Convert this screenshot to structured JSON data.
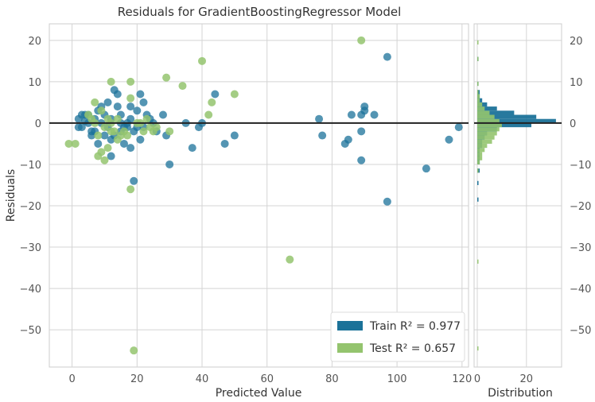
{
  "chart_data": {
    "type": "scatter",
    "title": "Residuals for GradientBoostingRegressor Model",
    "xlabel": "Predicted Value",
    "ylabel": "Residuals",
    "hist_xlabel": "Distribution",
    "xlim": [
      -7,
      122
    ],
    "ylim": [
      -59,
      24
    ],
    "xticks": [
      0,
      20,
      40,
      60,
      80,
      100,
      120
    ],
    "yticks": [
      20,
      10,
      0,
      -10,
      -20,
      -30,
      -40,
      -50
    ],
    "ytick_labels": [
      "20",
      "10",
      "0",
      "−10",
      "−20",
      "−30",
      "−40",
      "−50"
    ],
    "hist_xticks": [
      0,
      20
    ],
    "hist_xlim": [
      0,
      33
    ],
    "grid": true,
    "legend_position": "bottom-right",
    "colors": {
      "train": "#1b7299",
      "test": "#94c46e"
    },
    "series": [
      {
        "name": "Train",
        "legend": "Train R² = 0.977",
        "color": "#1b7299",
        "points": [
          [
            2,
            1
          ],
          [
            3,
            -1
          ],
          [
            4,
            0.5
          ],
          [
            5,
            2
          ],
          [
            6,
            -2
          ],
          [
            7,
            1
          ],
          [
            8,
            3
          ],
          [
            9,
            0
          ],
          [
            10,
            2
          ],
          [
            11,
            -1
          ],
          [
            12,
            1
          ],
          [
            13,
            -3
          ],
          [
            14,
            4
          ],
          [
            15,
            2
          ],
          [
            16,
            -1
          ],
          [
            17,
            0
          ],
          [
            18,
            1
          ],
          [
            19,
            -2
          ],
          [
            20,
            3
          ],
          [
            21,
            -4
          ],
          [
            22,
            -1
          ],
          [
            23,
            2
          ],
          [
            24,
            1
          ],
          [
            13,
            8
          ],
          [
            14,
            7
          ],
          [
            21,
            7
          ],
          [
            22,
            5
          ],
          [
            28,
            2
          ],
          [
            35,
            0
          ],
          [
            39,
            -1
          ],
          [
            40,
            0
          ],
          [
            44,
            7
          ],
          [
            47,
            -5
          ],
          [
            50,
            -3
          ],
          [
            29,
            -3
          ],
          [
            30,
            -10
          ],
          [
            37,
            -6
          ],
          [
            19,
            -14
          ],
          [
            12,
            -8
          ],
          [
            8,
            -5
          ],
          [
            10,
            -3
          ],
          [
            15,
            -2
          ],
          [
            16,
            -5
          ],
          [
            18,
            -6
          ],
          [
            6,
            -3
          ],
          [
            5,
            0
          ],
          [
            4,
            2
          ],
          [
            11,
            5
          ],
          [
            9,
            4
          ],
          [
            7,
            -2
          ],
          [
            3,
            2
          ],
          [
            2,
            -1
          ],
          [
            12,
            -4
          ],
          [
            15,
            0
          ],
          [
            17,
            -1
          ],
          [
            20,
            -1
          ],
          [
            25,
            0
          ],
          [
            26,
            -2
          ],
          [
            18,
            4
          ],
          [
            76,
            1
          ],
          [
            77,
            -3
          ],
          [
            86,
            2
          ],
          [
            85,
            -4
          ],
          [
            84,
            -5
          ],
          [
            89,
            -9
          ],
          [
            89,
            2
          ],
          [
            89,
            -2
          ],
          [
            93,
            2
          ],
          [
            90,
            4
          ],
          [
            90,
            3
          ],
          [
            97,
            16
          ],
          [
            97,
            -19
          ],
          [
            109,
            -11
          ],
          [
            116,
            -4
          ],
          [
            119,
            -1
          ]
        ]
      },
      {
        "name": "Test",
        "legend": "Test R² = 0.657",
        "color": "#94c46e",
        "points": [
          [
            -1,
            -5
          ],
          [
            1,
            -5
          ],
          [
            5,
            2
          ],
          [
            7,
            5
          ],
          [
            8,
            -3
          ],
          [
            8,
            -8
          ],
          [
            9,
            -7
          ],
          [
            10,
            -9
          ],
          [
            11,
            -6
          ],
          [
            12,
            0
          ],
          [
            12,
            10
          ],
          [
            18,
            10
          ],
          [
            18,
            6
          ],
          [
            20,
            0
          ],
          [
            22,
            -2
          ],
          [
            23,
            1
          ],
          [
            25,
            -2
          ],
          [
            26,
            -1
          ],
          [
            29,
            11
          ],
          [
            30,
            -2
          ],
          [
            34,
            9
          ],
          [
            40,
            15
          ],
          [
            42,
            2
          ],
          [
            43,
            5
          ],
          [
            50,
            7
          ],
          [
            67,
            -33
          ],
          [
            89,
            20
          ],
          [
            19,
            -55
          ],
          [
            18,
            -16
          ],
          [
            13,
            -2
          ],
          [
            14,
            -4
          ],
          [
            15,
            -3
          ],
          [
            6,
            1
          ],
          [
            9,
            3
          ],
          [
            10,
            -1
          ],
          [
            11,
            1
          ],
          [
            16,
            -2
          ],
          [
            17,
            -3
          ],
          [
            21,
            0
          ],
          [
            24,
            -1
          ],
          [
            14,
            1
          ],
          [
            12,
            -2
          ],
          [
            7,
            0
          ]
        ]
      }
    ],
    "hist_bins": [
      {
        "y": -18.5,
        "train": 0.5,
        "test": 0
      },
      {
        "y": -14.5,
        "train": 0.5,
        "test": 0
      },
      {
        "y": -11.5,
        "train": 1,
        "test": 0.5
      },
      {
        "y": -9.5,
        "train": 1,
        "test": 1
      },
      {
        "y": -8.5,
        "train": 1,
        "test": 2
      },
      {
        "y": -7.5,
        "train": 1,
        "test": 2
      },
      {
        "y": -6.5,
        "train": 1,
        "test": 3
      },
      {
        "y": -5.5,
        "train": 2,
        "test": 4
      },
      {
        "y": -4.5,
        "train": 2,
        "test": 6
      },
      {
        "y": -3.5,
        "train": 3,
        "test": 7
      },
      {
        "y": -2.5,
        "train": 4,
        "test": 8
      },
      {
        "y": -1.5,
        "train": 8,
        "test": 9
      },
      {
        "y": -0.5,
        "train": 22,
        "test": 10
      },
      {
        "y": 0.5,
        "train": 32,
        "test": 9
      },
      {
        "y": 1.5,
        "train": 24,
        "test": 7
      },
      {
        "y": 2.5,
        "train": 15,
        "test": 5
      },
      {
        "y": 3.5,
        "train": 8,
        "test": 3
      },
      {
        "y": 4.5,
        "train": 4,
        "test": 2
      },
      {
        "y": 5.5,
        "train": 2,
        "test": 1
      },
      {
        "y": 6.5,
        "train": 1,
        "test": 1
      },
      {
        "y": 7.5,
        "train": 1,
        "test": 0.5
      },
      {
        "y": 9.5,
        "train": 0.5,
        "test": 0.5
      },
      {
        "y": 15.5,
        "train": 0.5,
        "test": 0.5
      },
      {
        "y": 19.5,
        "train": 0,
        "test": 0.5
      },
      {
        "y": -33.5,
        "train": 0,
        "test": 0.5
      },
      {
        "y": -54.5,
        "train": 0,
        "test": 0.5
      }
    ]
  }
}
